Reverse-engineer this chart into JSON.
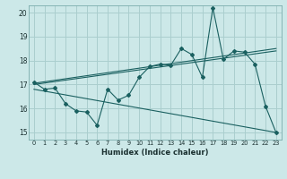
{
  "xlabel": "Humidex (Indice chaleur)",
  "background_color": "#cce8e8",
  "grid_color": "#aacece",
  "line_color": "#1a6060",
  "xlim": [
    -0.5,
    23.5
  ],
  "ylim": [
    14.7,
    20.3
  ],
  "yticks": [
    15,
    16,
    17,
    18,
    19,
    20
  ],
  "xticks": [
    0,
    1,
    2,
    3,
    4,
    5,
    6,
    7,
    8,
    9,
    10,
    11,
    12,
    13,
    14,
    15,
    16,
    17,
    18,
    19,
    20,
    21,
    22,
    23
  ],
  "series1": [
    17.1,
    16.8,
    16.85,
    16.2,
    15.9,
    15.85,
    15.3,
    16.8,
    16.35,
    16.55,
    17.3,
    17.75,
    17.85,
    17.8,
    18.5,
    18.25,
    17.3,
    20.2,
    18.05,
    18.4,
    18.35,
    17.85,
    16.1,
    15.0
  ],
  "trend1_x": [
    0,
    23
  ],
  "trend1_y": [
    17.05,
    18.5
  ],
  "trend2_x": [
    0,
    23
  ],
  "trend2_y": [
    17.0,
    18.4
  ],
  "trend3_x": [
    0,
    23
  ],
  "trend3_y": [
    16.8,
    15.0
  ]
}
